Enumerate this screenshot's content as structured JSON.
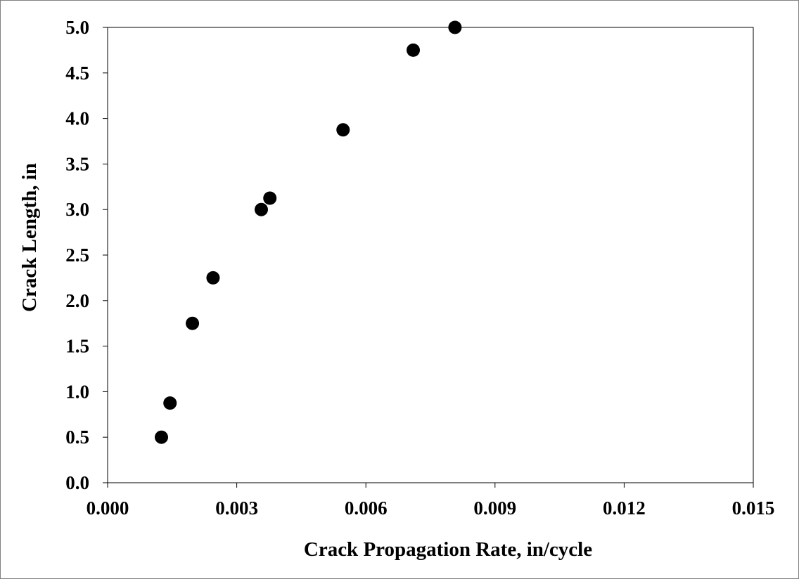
{
  "chart_data": {
    "type": "scatter",
    "title": "",
    "xlabel": "Crack Propagation Rate, in/cycle",
    "ylabel": "Crack Length, in",
    "xlim": [
      0,
      0.015
    ],
    "ylim": [
      0,
      5.0
    ],
    "x_ticks": [
      0.0,
      0.003,
      0.006,
      0.009,
      0.012,
      0.015
    ],
    "x_tick_labels": [
      "0.000",
      "0.003",
      "0.006",
      "0.009",
      "0.012",
      "0.015"
    ],
    "y_ticks": [
      0.0,
      0.5,
      1.0,
      1.5,
      2.0,
      2.5,
      3.0,
      3.5,
      4.0,
      4.5,
      5.0
    ],
    "y_tick_labels": [
      "0.0",
      "0.5",
      "1.0",
      "1.5",
      "2.0",
      "2.5",
      "3.0",
      "3.5",
      "4.0",
      "4.5",
      "5.0"
    ],
    "grid": false,
    "legend": "none",
    "marker_color": "#000000",
    "series": [
      {
        "x": [
          0.00125,
          0.00145,
          0.00197,
          0.00245,
          0.00357,
          0.00377,
          0.00547,
          0.0071,
          0.00807
        ],
        "y": [
          0.5,
          0.875,
          1.75,
          2.25,
          3.0,
          3.125,
          3.875,
          4.75,
          5.0
        ]
      }
    ]
  }
}
